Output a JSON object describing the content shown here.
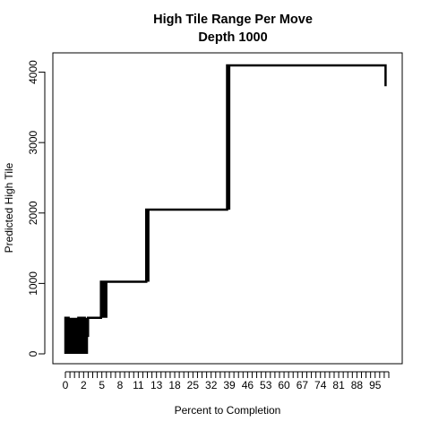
{
  "chart_data": {
    "type": "line",
    "title": "High Tile Range Per Move",
    "subtitle": "Depth 1000",
    "xlabel": "Percent to Completion",
    "ylabel": "Predicted High Tile",
    "xlim": [
      0,
      100
    ],
    "ylim": [
      0,
      4096
    ],
    "x_tick_labels": [
      "0",
      "2",
      "5",
      "8",
      "11",
      "13",
      "18",
      "25",
      "32",
      "39",
      "46",
      "53",
      "60",
      "67",
      "74",
      "81",
      "88",
      "95"
    ],
    "y_tick_labels": [
      "0",
      "1000",
      "2000",
      "3000",
      "4000"
    ],
    "series": [
      {
        "points": [
          {
            "x": 0,
            "y": 0
          },
          {
            "x": 0,
            "y": 512
          },
          {
            "x": 1,
            "y": 512
          },
          {
            "x": 1,
            "y": 256
          },
          {
            "x": 3,
            "y": 256
          },
          {
            "x": 3,
            "y": 128
          },
          {
            "x": 4,
            "y": 128
          },
          {
            "x": 4,
            "y": 512
          },
          {
            "x": 6,
            "y": 512
          },
          {
            "x": 6,
            "y": 256
          },
          {
            "x": 7,
            "y": 256
          },
          {
            "x": 7,
            "y": 512
          },
          {
            "x": 11,
            "y": 512
          },
          {
            "x": 11,
            "y": 1024
          },
          {
            "x": 25,
            "y": 1024
          },
          {
            "x": 25,
            "y": 2048
          },
          {
            "x": 50,
            "y": 2048
          },
          {
            "x": 50,
            "y": 4096
          },
          {
            "x": 99,
            "y": 4096
          },
          {
            "x": 99,
            "y": 3800
          }
        ]
      }
    ],
    "bands": [
      {
        "x0": 0,
        "x1": 7,
        "y0": 0,
        "y1": 512
      },
      {
        "x0": 11,
        "x1": 13,
        "y0": 512,
        "y1": 1024
      },
      {
        "x0": 25,
        "x1": 26,
        "y0": 1024,
        "y1": 2048
      },
      {
        "x0": 50,
        "x1": 51,
        "y0": 2048,
        "y1": 4096
      }
    ],
    "grid": false,
    "legend": "none"
  }
}
